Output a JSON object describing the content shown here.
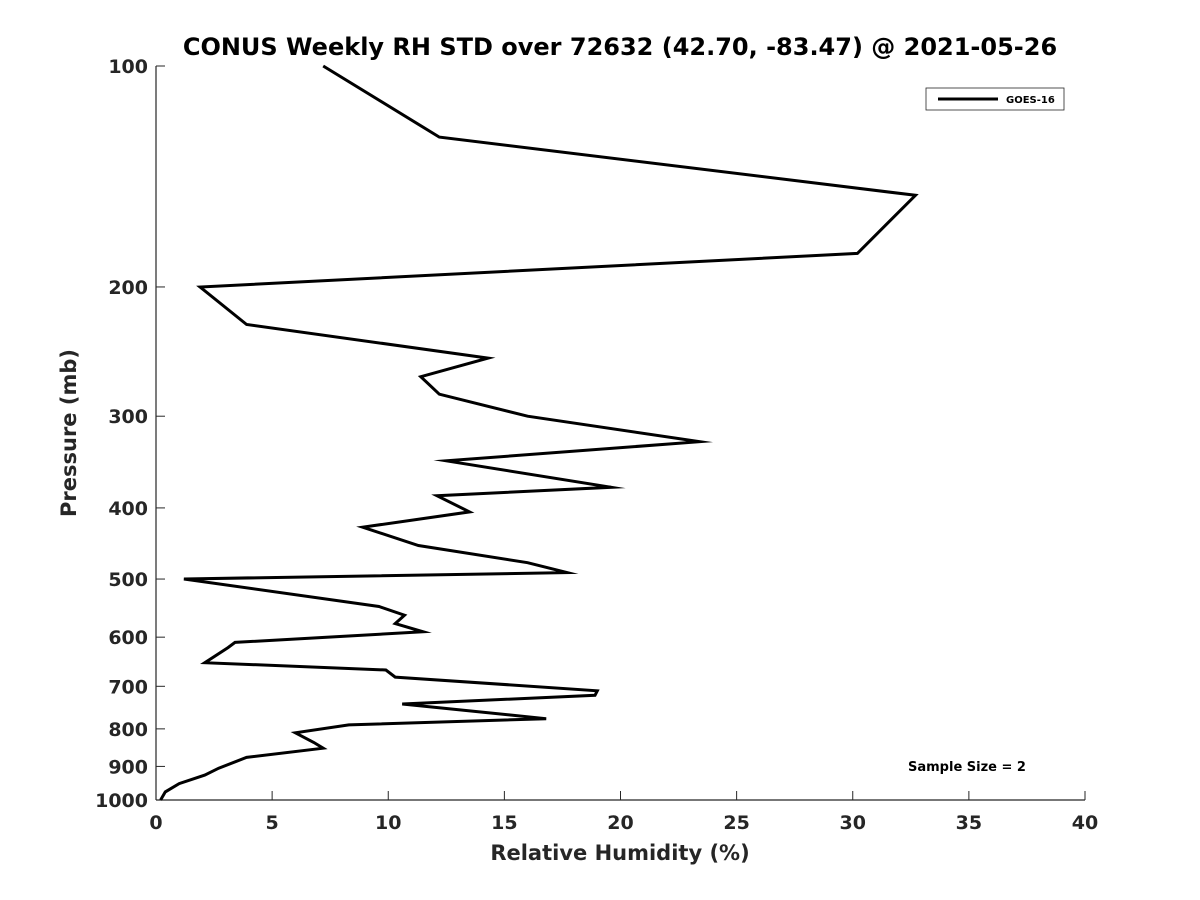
{
  "chart_data": {
    "type": "line",
    "title": "CONUS Weekly RH STD over 72632 (42.70, -83.47) @ 2021-05-26",
    "xlabel": "Relative Humidity (%)",
    "ylabel": "Pressure (mb)",
    "xlim": [
      0,
      40
    ],
    "ylim": [
      100,
      1000
    ],
    "yscale": "log",
    "y_reversed": true,
    "grid": false,
    "legend_position": "top-right",
    "x_ticks": [
      0,
      5,
      10,
      15,
      20,
      25,
      30,
      35,
      40
    ],
    "y_ticks": [
      100,
      200,
      300,
      400,
      500,
      600,
      700,
      800,
      900,
      1000
    ],
    "series": [
      {
        "name": "GOES-16",
        "color": "#000000",
        "x": [
          7.2,
          12.2,
          32.7,
          30.2,
          1.9,
          3.9,
          14.3,
          11.4,
          12.2,
          16.0,
          23.4,
          12.5,
          19.6,
          12.1,
          13.5,
          8.9,
          11.3,
          16.0,
          17.7,
          1.2,
          9.6,
          10.7,
          10.3,
          11.5,
          3.4,
          3.1,
          2.1,
          9.9,
          10.3,
          19.0,
          18.9,
          10.6,
          16.8,
          8.3,
          6.0,
          6.8,
          7.2,
          3.9,
          2.7,
          2.1,
          1.0,
          0.4,
          0.2
        ],
        "y": [
          100,
          125,
          150,
          180,
          200,
          225,
          250,
          265,
          280,
          300,
          325,
          345,
          375,
          385,
          405,
          425,
          450,
          475,
          490,
          500,
          545,
          560,
          575,
          590,
          610,
          620,
          650,
          665,
          680,
          710,
          720,
          740,
          775,
          790,
          810,
          835,
          850,
          875,
          905,
          925,
          950,
          975,
          1000
        ]
      }
    ],
    "annotations": [
      "Sample Size = 2"
    ]
  }
}
